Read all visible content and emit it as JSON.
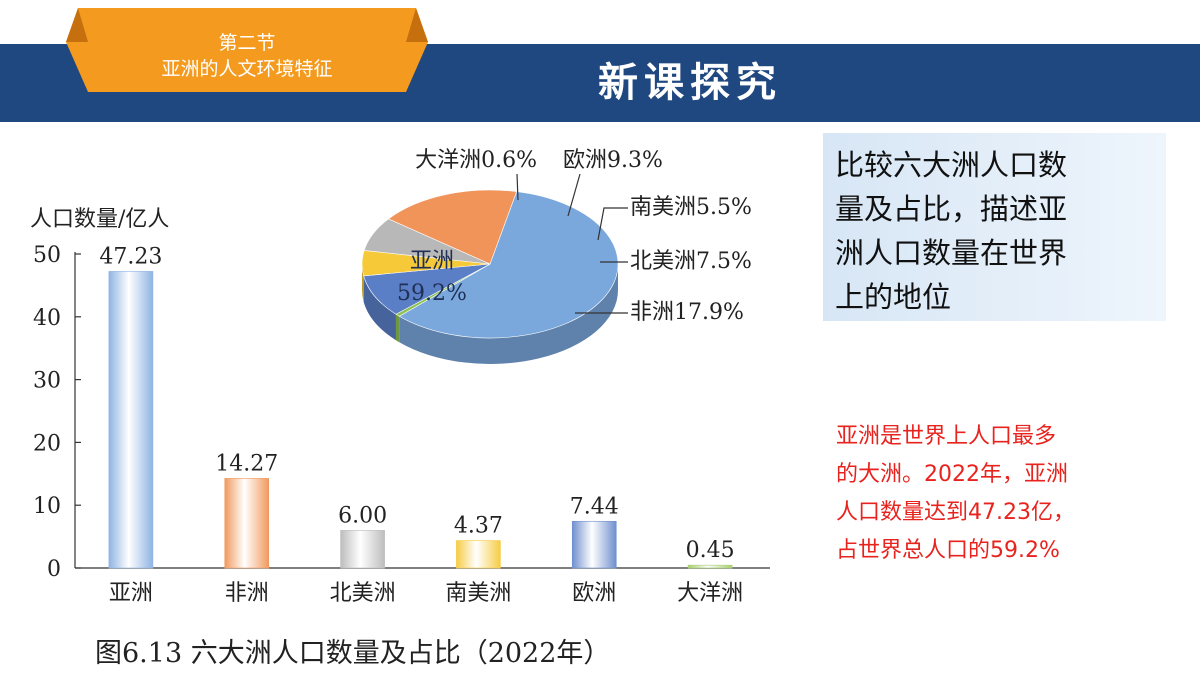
{
  "header": {
    "section_line1": "第二节",
    "section_line2": "亚洲的人文环境特征",
    "title": "新课探究",
    "bar_color": "#1f4780",
    "tab_color": "#f39a1f"
  },
  "question": {
    "lines": [
      "比较六大洲人口数",
      "量及占比，描述亚",
      "洲人口数量在世界",
      "上的地位"
    ]
  },
  "answer": {
    "lines": [
      "亚洲是世界上人口最多",
      "的大洲。2022年，亚洲",
      "人口数量达到47.23亿，",
      "占世界总人口的59.2%"
    ]
  },
  "chart_data": [
    {
      "type": "bar",
      "ylabel": "人口数量/亿人",
      "ylim": [
        0,
        50
      ],
      "yticks": [
        "0",
        "10",
        "20",
        "30",
        "40",
        "50"
      ],
      "categories": [
        "亚洲",
        "非洲",
        "北美洲",
        "南美洲",
        "欧洲",
        "大洋洲"
      ],
      "values": [
        47.23,
        14.27,
        6.0,
        4.37,
        7.44,
        0.45
      ],
      "value_labels": [
        "47.23",
        "14.27",
        "6.00",
        "4.37",
        "7.44",
        "0.45"
      ],
      "colors": [
        "#8fb4e3",
        "#f19a5e",
        "#bdbdbd",
        "#f6cc45",
        "#6f8fce",
        "#a8cf6e"
      ]
    },
    {
      "type": "pie",
      "slices": [
        {
          "name": "亚洲",
          "value": 59.2,
          "label": "亚洲",
          "pct_label": "59.2%",
          "color": "#7aa7dc"
        },
        {
          "name": "大洋洲",
          "value": 0.6,
          "label": "大洋洲0.6%",
          "color": "#8cc152"
        },
        {
          "name": "欧洲",
          "value": 9.3,
          "label": "欧洲9.3%",
          "color": "#5b7fc7"
        },
        {
          "name": "南美洲",
          "value": 5.5,
          "label": "南美洲5.5%",
          "color": "#f5c938"
        },
        {
          "name": "北美洲",
          "value": 7.5,
          "label": "北美洲7.5%",
          "color": "#b8b8b8"
        },
        {
          "name": "非洲",
          "value": 17.9,
          "label": "非洲17.9%",
          "color": "#f1945a"
        }
      ]
    }
  ],
  "caption": "图6.13  六大洲人口数量及占比（2022年）"
}
